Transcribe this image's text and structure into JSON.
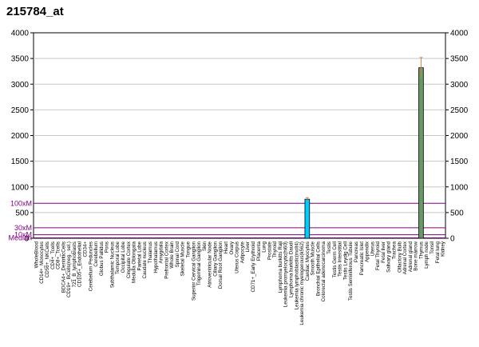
{
  "chart_data": {
    "type": "bar",
    "title": "215784_at",
    "ylim": [
      0,
      4000
    ],
    "yticks": [
      0,
      500,
      1000,
      1500,
      2000,
      2500,
      3000,
      3500,
      4000
    ],
    "right_yticks": [
      0,
      500,
      1000,
      1500,
      2000,
      2500,
      3000,
      3500,
      4000
    ],
    "reference_lines": [
      {
        "label": "100xM",
        "value": 680,
        "color": "#800080"
      },
      {
        "label": "30xM",
        "value": 204,
        "color": "#800080"
      },
      {
        "label": "10xM",
        "value": 68,
        "color": "#800080"
      },
      {
        "label": "Median",
        "value": 7,
        "color": "#800080"
      }
    ],
    "categories": [
      "WholeBlood",
      "CD14+_Monocytes",
      "CD56+_NKCells",
      "CD4+_Tcells",
      "CD8+_Tcells",
      "BDCA4+_DentriticCells",
      "CD19+_BCells(neg._sel.)",
      "721_B_lymphoblasts",
      "CD105+_Endothelial",
      "CD34+",
      "Cerebellum Peduncles",
      "Cerebellum",
      "Globus Pallidus",
      "Pons",
      "Subthalamic Nucleus",
      "Temporal Lobe",
      "Occipital Lobe",
      "Cingulate Cortex",
      "Medulla Oblongata",
      "Parietal Lobe",
      "Caudate nucleus",
      "Thalamus",
      "Hypothalamus",
      "Amygdala",
      "Prefrontal Cortex",
      "Whole Brain",
      "Spinal Cord",
      "Skeletal Muscle",
      "Tongue",
      "Superior Cervical Ganglion",
      "Trigeminal Ganglion",
      "Skin",
      "Atrioventricular Node",
      "Ciliary Ganglion",
      "Dorsal Root Ganglion",
      "Heart",
      "Ovary",
      "Uterus Corpus",
      "Adipocyte",
      "Liver",
      "CD71+_Early Erythroid",
      "Placenta",
      "Lung",
      "Prostate",
      "Thyroid",
      "Lymphoma burkitts Raji",
      "Leukemia promyelocytic(hl60)",
      "Lymphoma burkitts Daudi",
      "Leukemia lymphoblastic(molt4)",
      "Leukemia chronic myelogenous(k562)",
      "Cardiac Myocytes",
      "Smooth Muscle",
      "Bronchial Epithelial Cells",
      "Colorectal adenocarcinoma",
      "Testis",
      "Testis Germ Cell",
      "Testis Interstitial",
      "Testis Leydig Cell",
      "Testis Seminiferous Tubule",
      "Pancreas",
      "Pancreatic Islet",
      "Appendix",
      "Uterus",
      "Fetal Thyroid",
      "Fetal liver",
      "Salivary gland",
      "Trachea",
      "Olfactory Bulb",
      "Adrenal Cortex",
      "Adrenal gland",
      "Bone marrow",
      "Thymus",
      "Lymph node",
      "Tonsil",
      "Fetal lung",
      "Kidney"
    ],
    "values": [
      0,
      0,
      0,
      0,
      0,
      0,
      0,
      0,
      0,
      0,
      0,
      0,
      0,
      0,
      0,
      0,
      0,
      0,
      0,
      0,
      0,
      0,
      0,
      0,
      0,
      0,
      0,
      0,
      0,
      0,
      0,
      0,
      0,
      0,
      0,
      0,
      0,
      0,
      0,
      0,
      0,
      0,
      0,
      0,
      0,
      0,
      0,
      0,
      0,
      0,
      760,
      0,
      0,
      0,
      0,
      0,
      0,
      0,
      0,
      0,
      0,
      0,
      0,
      0,
      0,
      0,
      0,
      0,
      0,
      0,
      0,
      3320,
      0,
      0,
      0,
      0
    ],
    "errors": [
      0,
      0,
      0,
      0,
      0,
      0,
      0,
      0,
      0,
      0,
      0,
      0,
      0,
      0,
      0,
      0,
      0,
      0,
      0,
      0,
      0,
      0,
      0,
      0,
      0,
      0,
      0,
      0,
      0,
      0,
      0,
      0,
      0,
      0,
      0,
      0,
      0,
      0,
      0,
      0,
      0,
      0,
      0,
      0,
      0,
      0,
      0,
      0,
      0,
      0,
      30,
      0,
      0,
      0,
      0,
      0,
      0,
      0,
      0,
      0,
      0,
      0,
      0,
      0,
      0,
      0,
      0,
      0,
      0,
      0,
      0,
      200,
      0,
      0,
      0,
      0
    ],
    "bar_colors": {
      "50": "#00ccff",
      "71": "#669966"
    },
    "error_color": "#cc8844"
  }
}
